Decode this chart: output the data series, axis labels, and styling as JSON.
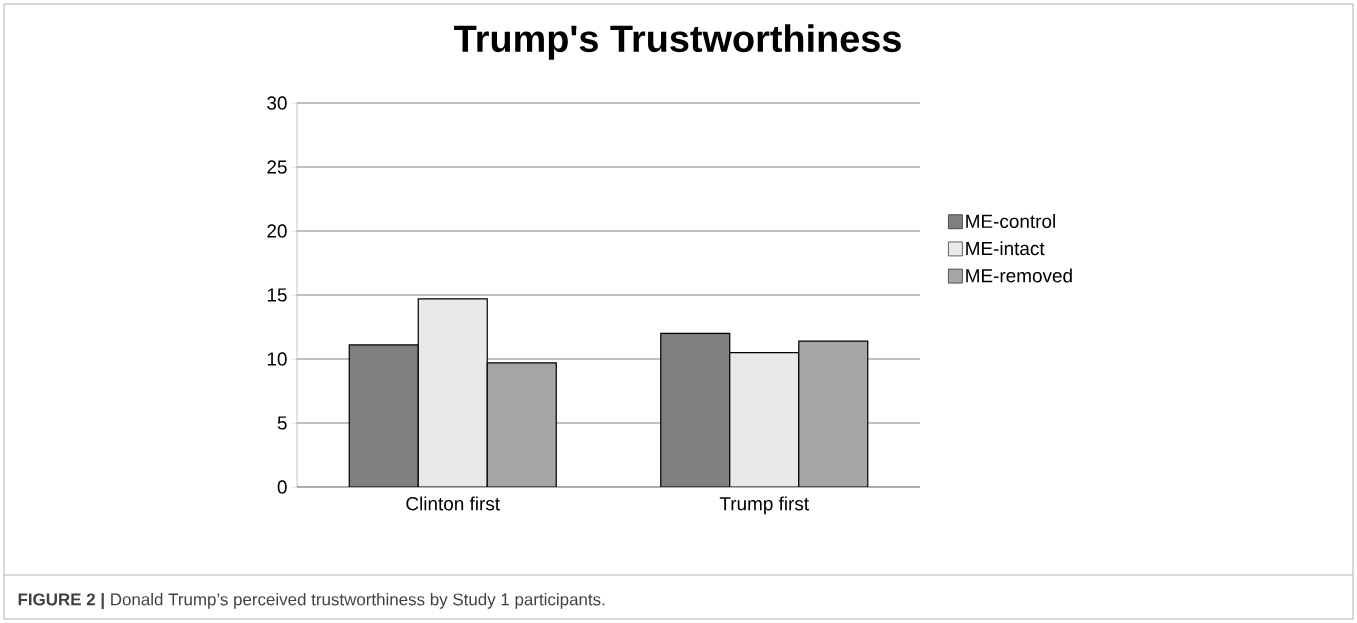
{
  "chart_data": {
    "type": "bar",
    "title": "Trump's Trustworthiness",
    "categories": [
      "Clinton first",
      "Trump first"
    ],
    "series": [
      {
        "name": "ME-control",
        "color": "#808080",
        "values": [
          11.1,
          12.0
        ]
      },
      {
        "name": "ME-intact",
        "color": "#e9e9e9",
        "values": [
          14.7,
          10.5
        ]
      },
      {
        "name": "ME-removed",
        "color": "#a6a6a6",
        "values": [
          9.7,
          11.4
        ]
      }
    ],
    "ylim": [
      0,
      30
    ],
    "yticks": [
      0,
      5,
      10,
      15,
      20,
      25,
      30
    ],
    "grid": "y",
    "legend": "right",
    "annotations": [
      "**FIGURE 2 |** Donald Trump’s perceived trustworthiness by Study 1 participants."
    ]
  }
}
